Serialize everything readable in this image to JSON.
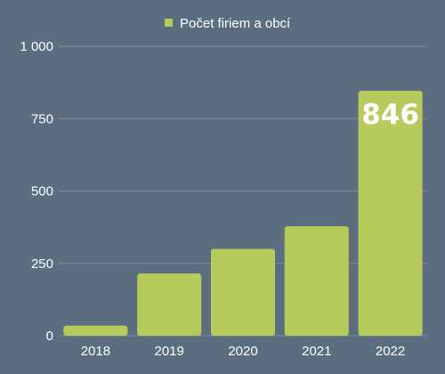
{
  "chart_data": {
    "type": "bar",
    "categories": [
      "2018",
      "2019",
      "2020",
      "2021",
      "2022"
    ],
    "series": [
      {
        "name": "Počet firiem a obcí",
        "values": [
          35,
          215,
          300,
          378,
          846
        ]
      }
    ],
    "data_labels": [
      {
        "category": "2022",
        "text": "846"
      }
    ],
    "y_ticks": [
      "0",
      "250",
      "500",
      "750",
      "1 000"
    ],
    "y_tick_values": [
      0,
      250,
      500,
      750,
      1000
    ],
    "ylim": [
      0,
      1000
    ],
    "grid": true,
    "legend_position": "top-center",
    "colors": {
      "background": "#5b6e80",
      "bar": "#b7ca5c",
      "grid": "#7d8ea0",
      "text": "#ffffff"
    }
  }
}
